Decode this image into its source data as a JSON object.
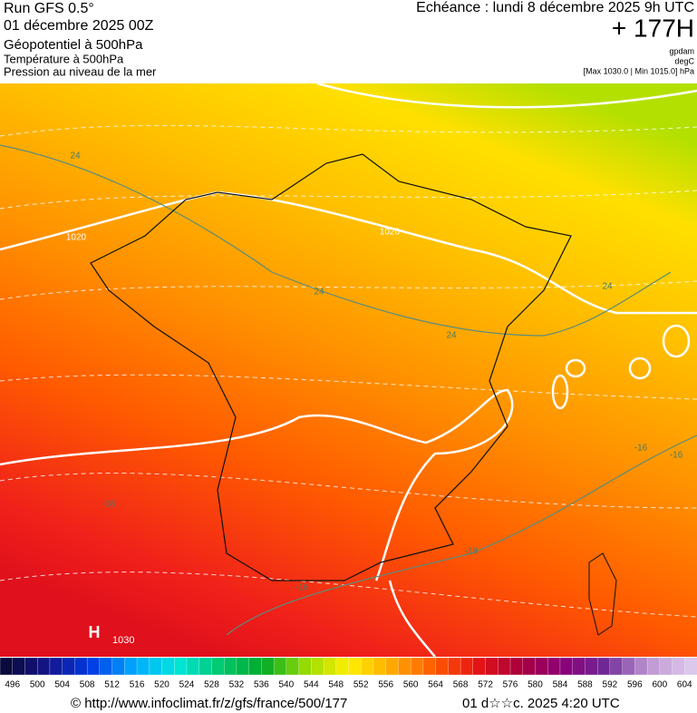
{
  "header": {
    "run": "Run GFS 0.5°",
    "run_date": "01 décembre 2025 00Z",
    "layer1": "Géopotentiel à 500hPa",
    "layer2": "Température à 500hPa",
    "layer3": "Pression au niveau de la mer",
    "echeance": "Echéance : lundi 8 décembre 2025 9h UTC",
    "lead": "+ 177H",
    "unit1": "gpdam",
    "unit2": "degC",
    "range": "[Max 1030.0 | Min 1015.0] hPa"
  },
  "map": {
    "labels": [
      {
        "text": "24",
        "kind": "temp"
      },
      {
        "text": "1020",
        "kind": "pres"
      },
      {
        "text": "24",
        "kind": "temp"
      },
      {
        "text": "24",
        "kind": "temp"
      },
      {
        "text": "24",
        "kind": "temp"
      },
      {
        "text": "1020",
        "kind": "pres"
      },
      {
        "text": "-16",
        "kind": "temp"
      },
      {
        "text": "-16",
        "kind": "temp"
      },
      {
        "text": "-18",
        "kind": "temp"
      },
      {
        "text": "-18",
        "kind": "temp"
      },
      {
        "text": "-16",
        "kind": "temp"
      }
    ],
    "high": {
      "symbol": "H",
      "value": "1030"
    }
  },
  "scale": {
    "labels": [
      496,
      500,
      504,
      508,
      512,
      516,
      520,
      524,
      528,
      532,
      536,
      540,
      544,
      548,
      552,
      556,
      560,
      564,
      568,
      572,
      576,
      580,
      584,
      588,
      592,
      596,
      600,
      604
    ]
  },
  "footer": {
    "url": "© http://www.infoclimat.fr/z/gfs/france/500/177",
    "stamp": "01 d☆☆c. 2025  4:20 UTC"
  }
}
